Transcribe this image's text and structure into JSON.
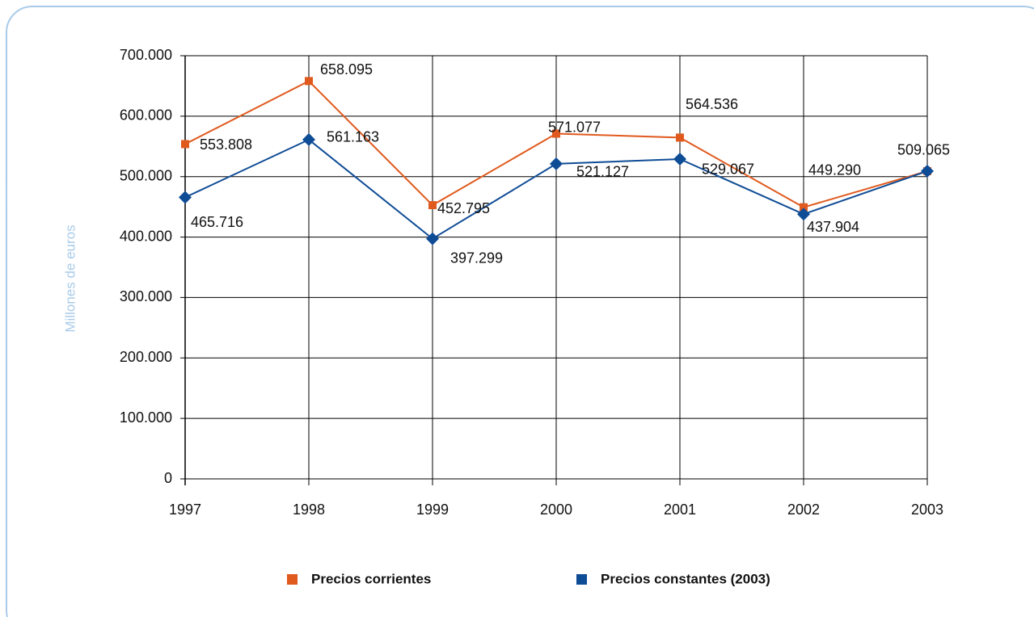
{
  "chart_data": {
    "type": "line",
    "y_label": "Millones de euros",
    "categories": [
      "1997",
      "1998",
      "1999",
      "2000",
      "2001",
      "2002",
      "2003"
    ],
    "series": [
      {
        "name": "Precios corrientes",
        "color": "#e05a1e",
        "marker": "square",
        "values": [
          553808,
          658095,
          452795,
          571077,
          564536,
          449290,
          509065
        ],
        "value_labels": [
          "553.808",
          "658.095",
          "452.795",
          "571.077",
          "564.536",
          "449.290",
          "509.065"
        ]
      },
      {
        "name": "Precios constantes (2003)",
        "color": "#0f4c96",
        "marker": "diamond",
        "values": [
          465716,
          561163,
          397299,
          521127,
          529067,
          437904,
          509065
        ],
        "value_labels": [
          "465.716",
          "561.163",
          "397.299",
          "521.127",
          "529.067",
          "437.904",
          null
        ]
      }
    ],
    "ylim": [
      0,
      700000
    ],
    "yticks": [
      0,
      {
        "value": 100000,
        "label": "100.000"
      },
      {
        "value": 200000,
        "label": "200.000"
      },
      {
        "value": 300000,
        "label": "300.000"
      },
      {
        "value": 400000,
        "label": "400.000"
      },
      {
        "value": 500000,
        "label": "500.000"
      },
      {
        "value": 600000,
        "label": "600.000"
      },
      {
        "value": 700000,
        "label": "700.000"
      }
    ],
    "grid": true
  }
}
